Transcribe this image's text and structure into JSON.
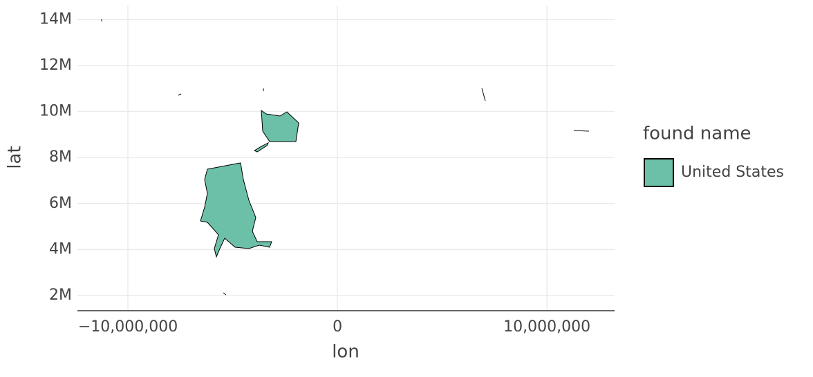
{
  "chart_data": {
    "type": "map",
    "x_label": "lon",
    "y_label": "lat",
    "xlim": [
      -12410000,
      13230000
    ],
    "xticks": [
      {
        "value": -10000000,
        "label": "−10,000,000"
      },
      0,
      {
        "value": 10000000,
        "label": "10,000,000"
      }
    ],
    "ylim": [
      1340000,
      14610000
    ],
    "yticks": [
      {
        "value": 2000000,
        "label": "2M"
      },
      {
        "value": 4000000,
        "label": "4M"
      },
      {
        "value": 6000000,
        "label": "6M"
      },
      {
        "value": 8000000,
        "label": "8M"
      },
      {
        "value": 10000000,
        "label": "10M"
      },
      {
        "value": 12000000,
        "label": "12M"
      },
      {
        "value": 14000000,
        "label": "14M"
      }
    ],
    "grid": true,
    "legend_title": "found name",
    "series": [
      {
        "name": "United States",
        "color": "#6cc0a8"
      }
    ]
  }
}
